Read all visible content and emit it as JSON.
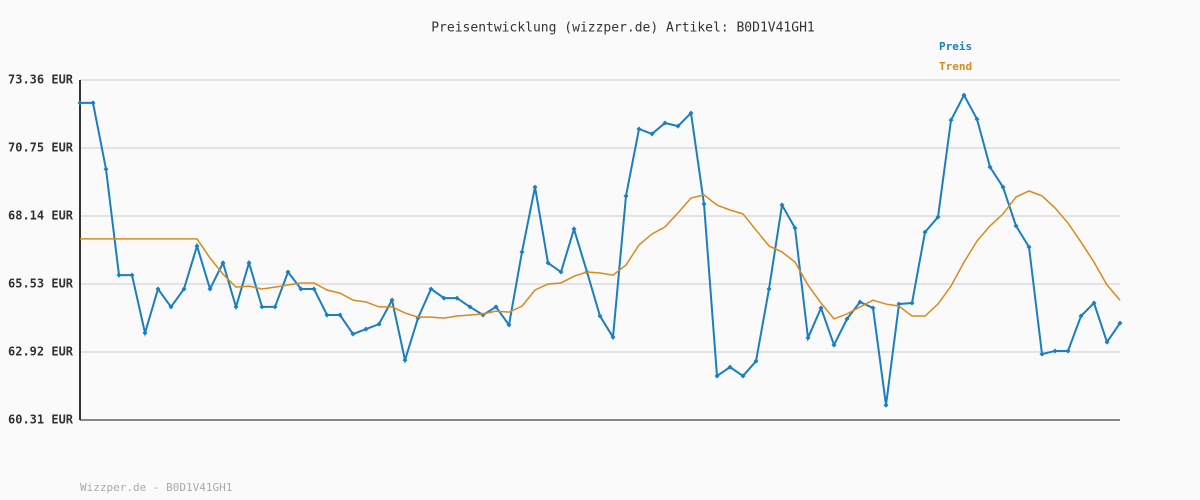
{
  "chart_data": {
    "type": "line",
    "title": "Preisentwicklung (wizzper.de) Artikel: B0D1V41GH1",
    "footer": "Wizzper.de - B0D1V41GH1",
    "ylim": [
      60.31,
      73.36
    ],
    "yticks": [
      {
        "value": 60.31,
        "label": "60.31 EUR"
      },
      {
        "value": 62.92,
        "label": "62.92 EUR"
      },
      {
        "value": 65.53,
        "label": "65.53 EUR"
      },
      {
        "value": 68.14,
        "label": "68.14 EUR"
      },
      {
        "value": 70.75,
        "label": "70.75 EUR"
      },
      {
        "value": 73.36,
        "label": "73.36 EUR"
      }
    ],
    "grid": true,
    "legend": "top-right",
    "series": [
      {
        "name": "Preis",
        "color": "#1a7ebf",
        "markers": true,
        "values": [
          72.48,
          72.48,
          69.94,
          65.87,
          65.87,
          63.65,
          65.34,
          64.65,
          65.34,
          66.99,
          65.34,
          66.34,
          64.65,
          66.34,
          64.65,
          64.65,
          65.99,
          65.34,
          65.34,
          64.34,
          64.34,
          63.61,
          63.8,
          63.99,
          64.91,
          62.61,
          64.22,
          65.34,
          64.99,
          64.99,
          64.65,
          64.34,
          64.65,
          63.96,
          66.76,
          69.25,
          66.34,
          65.99,
          67.64,
          65.99,
          64.3,
          63.49,
          68.91,
          71.48,
          71.29,
          71.71,
          71.59,
          72.09,
          68.6,
          62.0,
          62.34,
          62.0,
          62.57,
          65.34,
          68.56,
          67.68,
          63.46,
          64.61,
          63.19,
          64.19,
          64.84,
          64.61,
          60.88,
          64.76,
          64.8,
          67.52,
          68.1,
          71.82,
          72.78,
          71.86,
          70.02,
          69.25,
          67.76,
          66.95,
          62.84,
          62.96,
          62.96,
          64.3,
          64.8,
          63.3,
          64.03
        ]
      },
      {
        "name": "Trend",
        "color": "#d98a1e",
        "markers": false,
        "values": [
          67.26,
          67.26,
          67.26,
          67.26,
          67.26,
          67.26,
          67.26,
          67.26,
          67.26,
          67.26,
          66.53,
          65.91,
          65.41,
          65.45,
          65.34,
          65.41,
          65.49,
          65.57,
          65.57,
          65.3,
          65.18,
          64.91,
          64.84,
          64.65,
          64.65,
          64.42,
          64.26,
          64.26,
          64.22,
          64.3,
          64.34,
          64.38,
          64.49,
          64.45,
          64.68,
          65.3,
          65.53,
          65.57,
          65.83,
          65.99,
          65.95,
          65.87,
          66.26,
          67.03,
          67.45,
          67.72,
          68.26,
          68.83,
          68.95,
          68.56,
          68.37,
          68.22,
          67.6,
          66.99,
          66.76,
          66.37,
          65.49,
          64.8,
          64.19,
          64.38,
          64.65,
          64.91,
          64.76,
          64.68,
          64.3,
          64.3,
          64.76,
          65.45,
          66.37,
          67.18,
          67.76,
          68.22,
          68.87,
          69.1,
          68.91,
          68.45,
          67.87,
          67.14,
          66.37,
          65.49,
          64.91
        ]
      }
    ]
  }
}
